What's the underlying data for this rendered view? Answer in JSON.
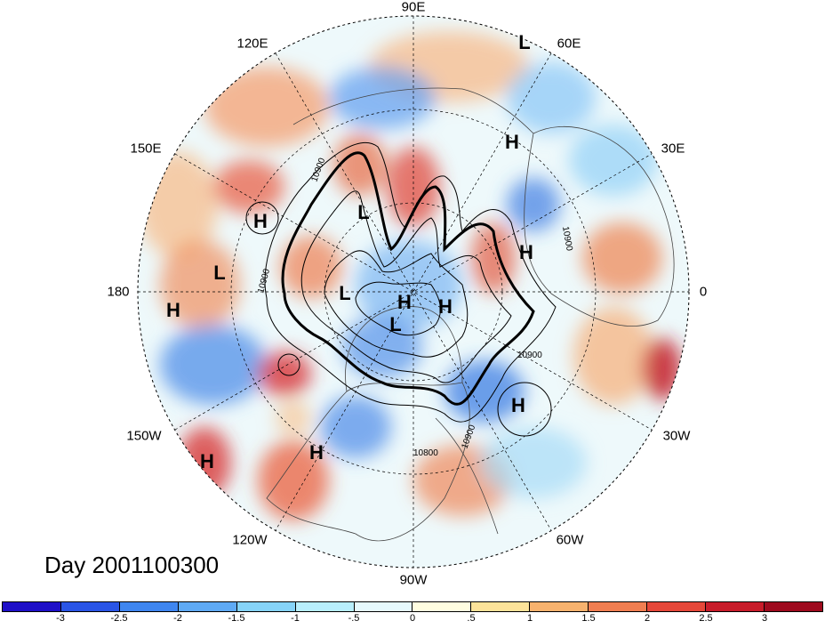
{
  "map": {
    "longitude_labels": [
      "90E",
      "60E",
      "30E",
      "0",
      "30W",
      "60W",
      "90W",
      "120W",
      "150W",
      "180",
      "150E",
      "120E"
    ],
    "pressure_centers": [
      {
        "label": "L"
      },
      {
        "label": "H"
      },
      {
        "label": "H"
      },
      {
        "label": "L"
      },
      {
        "label": "L"
      },
      {
        "label": "H"
      },
      {
        "label": "L"
      },
      {
        "label": "H"
      },
      {
        "label": "L"
      },
      {
        "label": "H"
      },
      {
        "label": "H"
      },
      {
        "label": "H"
      },
      {
        "label": "H"
      },
      {
        "label": "H"
      }
    ],
    "contour_labels": [
      "10900",
      "10900",
      "10900",
      "10900",
      "10900",
      "10800"
    ],
    "date_label": "Day 2001100300"
  },
  "colorbar": {
    "ticks": [
      "-3",
      "-2.5",
      "-2",
      "-1.5",
      "-1",
      "-.5",
      "0",
      ".5",
      "1",
      "1.5",
      "2",
      "2.5",
      "3"
    ],
    "colors": [
      "#1f10c8",
      "#2a55e6",
      "#3f86f0",
      "#5faaf5",
      "#86d3f8",
      "#b8eefc",
      "#e6f9fd",
      "#fffde0",
      "#fde39a",
      "#f7b26e",
      "#f07e51",
      "#e54739",
      "#c81c2a",
      "#9e0a1e"
    ]
  }
}
